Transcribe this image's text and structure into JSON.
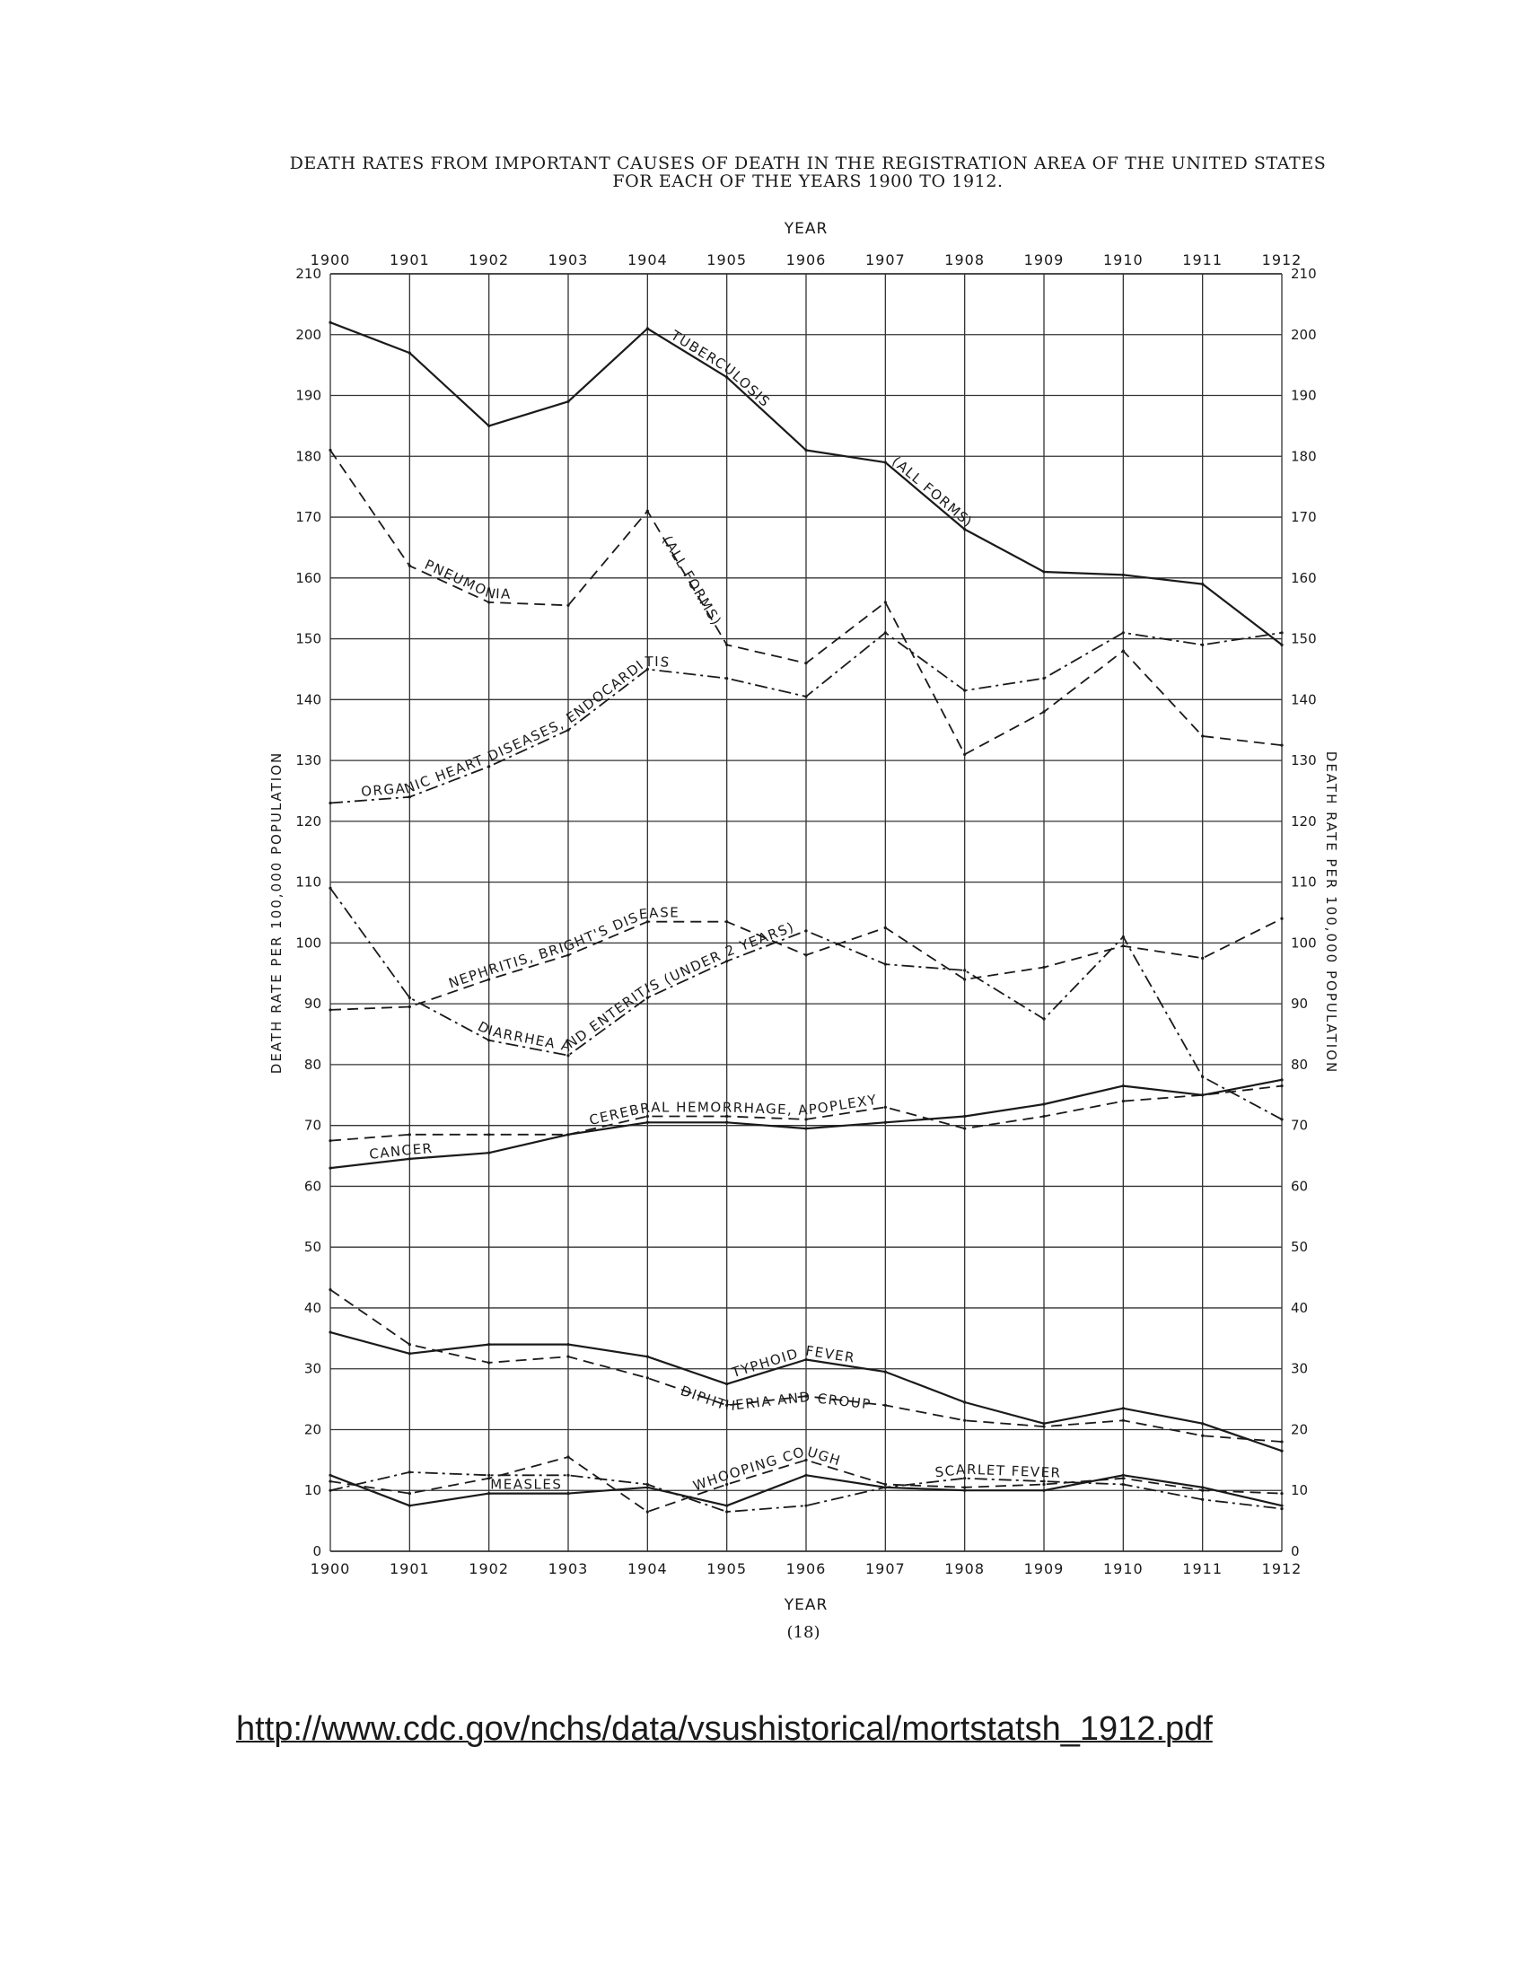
{
  "header": {
    "title_line1": "DEATH RATES FROM IMPORTANT CAUSES OF DEATH IN THE REGISTRATION AREA OF THE UNITED STATES",
    "title_line2": "FOR EACH OF THE YEARS 1900 TO 1912."
  },
  "footer": {
    "page_number": "(18)",
    "source_url": "http://www.cdc.gov/nchs/data/vsushistorical/mortstatsh_1912.pdf"
  },
  "chart_data": {
    "type": "line",
    "title": "DEATH RATES FROM IMPORTANT CAUSES OF DEATH IN THE REGISTRATION AREA OF THE UNITED STATES FOR EACH OF THE YEARS 1900 TO 1912.",
    "xlabel": "YEAR",
    "ylabel": "DEATH RATE PER 100,000 POPULATION",
    "ylabel_right": "DEATH RATE PER 100,000 POPULATION",
    "x": [
      "1900",
      "1901",
      "1902",
      "1903",
      "1904",
      "1905",
      "1906",
      "1907",
      "1908",
      "1909",
      "1910",
      "1911",
      "1912"
    ],
    "ylim": [
      0,
      210
    ],
    "yticks": [
      0,
      10,
      20,
      30,
      40,
      50,
      60,
      70,
      80,
      90,
      100,
      110,
      120,
      130,
      140,
      150,
      160,
      170,
      180,
      190,
      200,
      210
    ],
    "grid": true,
    "legend": "none",
    "series": [
      {
        "name": "TUBERCULOSIS (ALL FORMS)",
        "label_parts": [
          "TUBERCULOSIS",
          "(ALL FORMS)"
        ],
        "style": "solid",
        "values": [
          202,
          197,
          185,
          189,
          201,
          193,
          181,
          179,
          168,
          161,
          160.5,
          159,
          149
        ]
      },
      {
        "name": "PNEUMONIA (ALL FORMS)",
        "label_parts": [
          "PNEUMONIA",
          "(ALL FORMS)"
        ],
        "style": "dashed",
        "values": [
          181,
          162,
          156,
          155.5,
          171,
          149,
          146,
          156,
          131,
          138,
          148,
          134,
          132.5
        ]
      },
      {
        "name": "ORGANIC HEART DISEASES, ENDOCARDITIS",
        "label_parts": [
          "ORGANIC HEART DISEASES, ENDOCARDITIS"
        ],
        "style": "dash-dot",
        "values": [
          123,
          124,
          129,
          135,
          145,
          143.5,
          140.5,
          151,
          141.5,
          143.5,
          151,
          149,
          151
        ]
      },
      {
        "name": "NEPHRITIS, BRIGHT'S DISEASE",
        "label_parts": [
          "NEPHRITIS, BRIGHT'S DISEASE"
        ],
        "style": "dashed",
        "values": [
          89,
          89.5,
          94,
          98,
          103.5,
          103.5,
          98,
          102.5,
          94,
          96,
          99.5,
          97.5,
          104
        ]
      },
      {
        "name": "DIARRHEA AND ENTERITIS (UNDER 2 YEARS)",
        "label_parts": [
          "DIARRHEA AND ENTERITIS (UNDER 2 YEARS)"
        ],
        "style": "dash-dot",
        "values": [
          109,
          91,
          84,
          81.5,
          91,
          97,
          102,
          96.5,
          95.5,
          87.5,
          101,
          78,
          71
        ]
      },
      {
        "name": "CEREBRAL HEMORRHAGE, APOPLEXY",
        "label_parts": [
          "CEREBRAL HEMORRHAGE, APOPLEXY"
        ],
        "style": "dashed",
        "values": [
          67.5,
          68.5,
          68.5,
          68.5,
          71.5,
          71.5,
          71,
          73,
          69.5,
          71.5,
          74,
          75,
          76.5
        ]
      },
      {
        "name": "CANCER",
        "label_parts": [
          "CANCER"
        ],
        "style": "solid",
        "values": [
          63,
          64.5,
          65.5,
          68.5,
          70.5,
          70.5,
          69.5,
          70.5,
          71.5,
          73.5,
          76.5,
          75,
          77.5
        ]
      },
      {
        "name": "TYPHOID FEVER",
        "label_parts": [
          "TYPHOID FEVER"
        ],
        "style": "solid",
        "values": [
          36,
          32.5,
          34,
          34,
          32,
          27.5,
          31.5,
          29.5,
          24.5,
          21,
          23.5,
          21,
          16.5
        ]
      },
      {
        "name": "DIPHTHERIA AND CROUP",
        "label_parts": [
          "DIPHTHERIA AND CROUP"
        ],
        "style": "dashed",
        "values": [
          43,
          34,
          31,
          32,
          28.5,
          24,
          25.5,
          24,
          21.5,
          20.5,
          21.5,
          19,
          18
        ]
      },
      {
        "name": "WHOOPING COUGH",
        "label_parts": [
          "WHOOPING COUGH"
        ],
        "style": "dashed",
        "values": [
          11.5,
          9.5,
          12,
          15.5,
          6.5,
          11,
          15,
          11,
          10.5,
          11,
          12,
          10,
          9.5
        ]
      },
      {
        "name": "SCARLET FEVER",
        "label_parts": [
          "SCARLET FEVER"
        ],
        "style": "dash-dot",
        "values": [
          10,
          13,
          12.5,
          12.5,
          11,
          6.5,
          7.5,
          10.5,
          12,
          11.5,
          11,
          8.5,
          7
        ]
      },
      {
        "name": "MEASLES",
        "label_parts": [
          "MEASLES"
        ],
        "style": "solid",
        "values": [
          12.5,
          7.5,
          9.5,
          9.5,
          10.5,
          7.5,
          12.5,
          10.5,
          10,
          10,
          12.5,
          10.5,
          7.5
        ]
      }
    ]
  }
}
